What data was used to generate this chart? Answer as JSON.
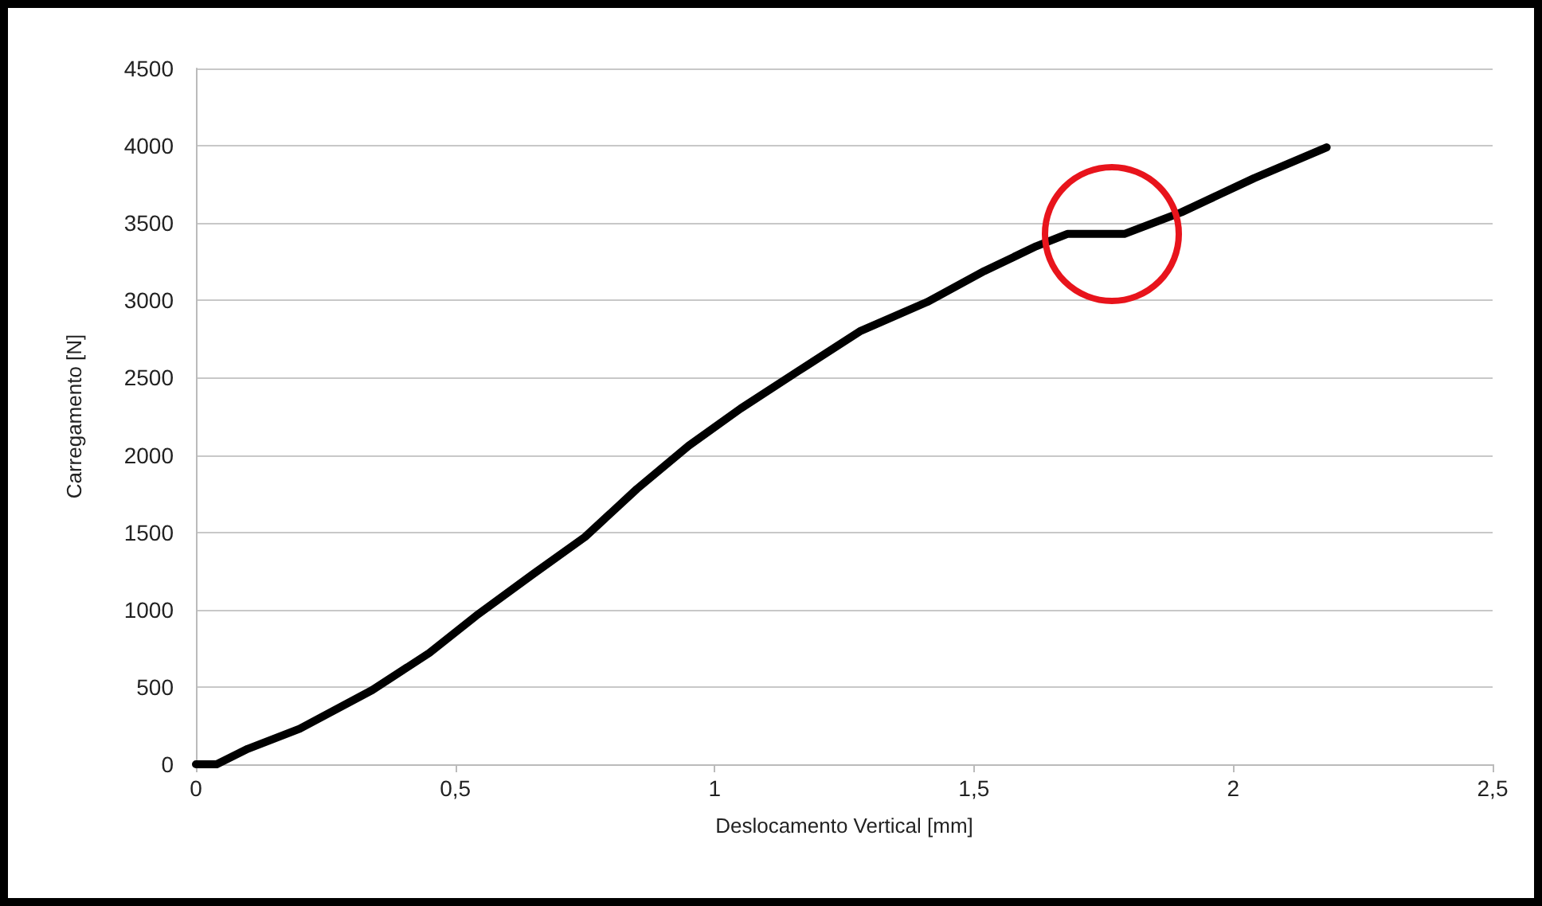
{
  "chart_data": {
    "type": "line",
    "xlabel": "Deslocamento Vertical [mm]",
    "ylabel": "Carregamento [N]",
    "series": [
      {
        "color": "#000000",
        "x": [
          0,
          0.04,
          0.1,
          0.2,
          0.34,
          0.45,
          0.54,
          0.65,
          0.75,
          0.85,
          0.95,
          1.05,
          1.16,
          1.28,
          1.41,
          1.52,
          1.62,
          1.68,
          1.79,
          1.9,
          2.04,
          2.18
        ],
        "values": [
          0,
          0,
          100,
          230,
          480,
          720,
          960,
          1230,
          1470,
          1780,
          2060,
          2300,
          2540,
          2800,
          2990,
          3190,
          3350,
          3430,
          3430,
          3570,
          3790,
          3990
        ]
      }
    ],
    "xlim": [
      0,
      2.5
    ],
    "xticks": [
      {
        "value": 0,
        "label": "0"
      },
      {
        "value": 0.5,
        "label": "0,5"
      },
      {
        "value": 1,
        "label": "1"
      },
      {
        "value": 1.5,
        "label": "1,5"
      },
      {
        "value": 2,
        "label": "2"
      },
      {
        "value": 2.5,
        "label": "2,5"
      }
    ],
    "ylim": [
      0,
      4500
    ],
    "yticks": [
      0,
      500,
      1000,
      1500,
      2000,
      2500,
      3000,
      3500,
      4000,
      4500
    ],
    "grid": "y",
    "marker": "none",
    "line_style": "solid"
  }
}
